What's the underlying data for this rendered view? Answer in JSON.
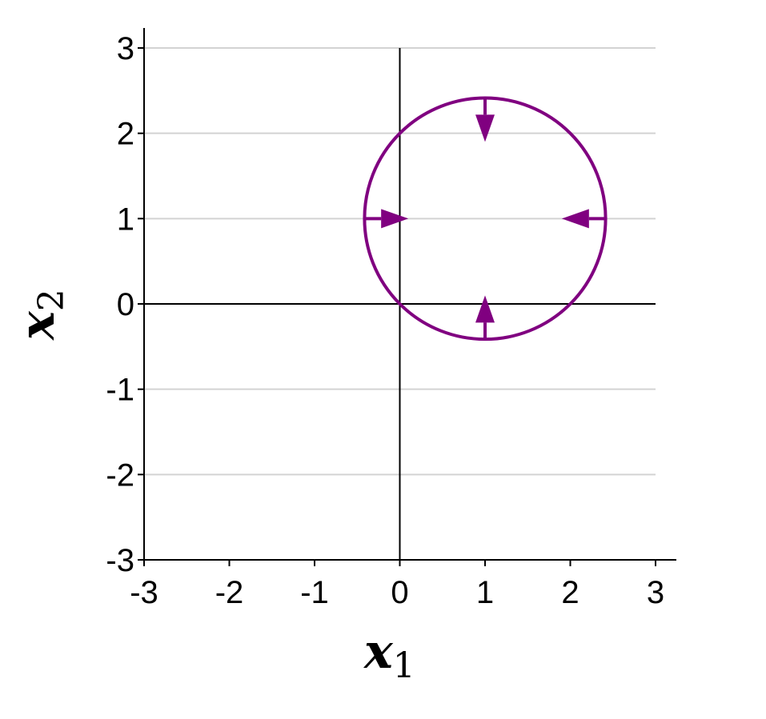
{
  "chart_data": {
    "type": "line",
    "title": "",
    "xlabel": "x",
    "xlabel_sub": "1",
    "ylabel": "x",
    "ylabel_sub": "2",
    "xlim": [
      -3,
      3
    ],
    "ylim": [
      -3,
      3
    ],
    "x_ticks": [
      -3,
      -2,
      -1,
      0,
      1,
      2,
      3
    ],
    "x_tick_labels": [
      "-3",
      "-2",
      "-1",
      "0",
      "1",
      "2",
      "3"
    ],
    "y_ticks": [
      -3,
      -2,
      -1,
      0,
      1,
      2,
      3
    ],
    "y_tick_labels": [
      "-3",
      "-2",
      "-1",
      "0",
      "1",
      "2",
      "3"
    ],
    "grid": "horizontal",
    "reference_lines": {
      "x": 0,
      "y": 0
    },
    "circle": {
      "center": [
        1,
        1
      ],
      "radius": 1.414
    },
    "arrows": [
      {
        "name": "top",
        "from": [
          1,
          2.414
        ],
        "to": [
          1,
          1.9
        ]
      },
      {
        "name": "bottom",
        "from": [
          1,
          -0.414
        ],
        "to": [
          1,
          0.1
        ]
      },
      {
        "name": "left",
        "from": [
          -0.414,
          1
        ],
        "to": [
          0.1,
          1
        ]
      },
      {
        "name": "right",
        "from": [
          2.414,
          1
        ],
        "to": [
          1.9,
          1
        ]
      }
    ],
    "colors": {
      "circle": "#800080",
      "grid": "#d3d3d3",
      "axis": "#000000"
    }
  }
}
